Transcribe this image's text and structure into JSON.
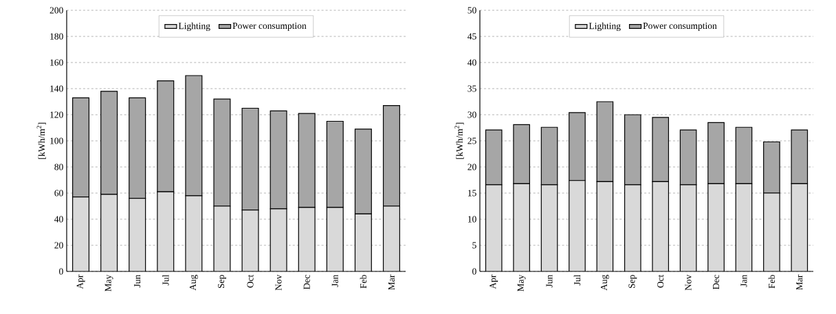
{
  "chart_data": [
    {
      "type": "bar",
      "stacked": true,
      "ylabel": "[kWh/m$^{2}$]",
      "categories": [
        "Apr",
        "May",
        "Jun",
        "Jul",
        "Aug",
        "Sep",
        "Oct",
        "Nov",
        "Dec",
        "Jan",
        "Feb",
        "Mar"
      ],
      "series": [
        {
          "name": "Lighting",
          "color": "#d9d9d9",
          "values": [
            57,
            59,
            56,
            61,
            58,
            50,
            47,
            48,
            49,
            49,
            44,
            50
          ]
        },
        {
          "name": "Power consumption",
          "color": "#a6a6a6",
          "values": [
            76,
            79,
            77,
            85,
            92,
            82,
            78,
            75,
            72,
            66,
            65,
            77
          ]
        }
      ],
      "ylim": [
        0,
        200
      ],
      "yticks": [
        0,
        20,
        40,
        60,
        80,
        100,
        120,
        140,
        160,
        180,
        200
      ],
      "grid": "y",
      "legend": "top"
    },
    {
      "type": "bar",
      "stacked": true,
      "ylabel": "[kWh/m$^{2}$]",
      "categories": [
        "Apr",
        "May",
        "Jun",
        "Jul",
        "Aug",
        "Sep",
        "Oct",
        "Nov",
        "Dec",
        "Jan",
        "Feb",
        "Mar"
      ],
      "series": [
        {
          "name": "Lighting",
          "color": "#d9d9d9",
          "values": [
            16.6,
            16.8,
            16.6,
            17.4,
            17.2,
            16.6,
            17.2,
            16.6,
            16.8,
            16.8,
            15.0,
            16.8
          ]
        },
        {
          "name": "Power consumption",
          "color": "#a6a6a6",
          "values": [
            10.5,
            11.3,
            11.0,
            13.0,
            15.3,
            13.4,
            12.3,
            10.5,
            11.7,
            10.8,
            9.8,
            10.3
          ]
        }
      ],
      "ylim": [
        0,
        50
      ],
      "yticks": [
        0,
        5,
        10,
        15,
        20,
        25,
        30,
        35,
        40,
        45,
        50
      ],
      "grid": "y",
      "legend": "top"
    }
  ]
}
